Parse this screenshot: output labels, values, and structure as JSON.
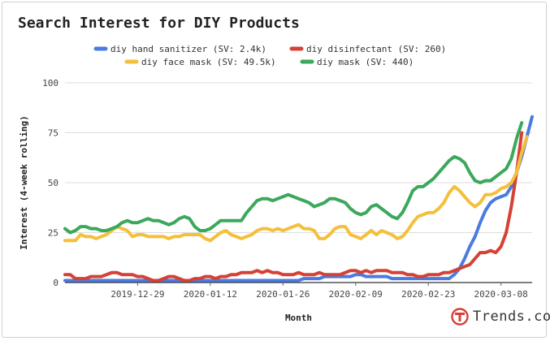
{
  "chart_data": {
    "type": "line",
    "title": "Search Interest for DIY Products",
    "xlabel": "Month",
    "ylabel": "Interest (4-week rolling)",
    "ylim": [
      0,
      100
    ],
    "yticks": [
      "0",
      "25",
      "50",
      "75",
      "100"
    ],
    "xticks": [
      {
        "index": 14,
        "label": "2019-12-29"
      },
      {
        "index": 28,
        "label": "2020-01-12"
      },
      {
        "index": 42,
        "label": "2020-01-26"
      },
      {
        "index": 56,
        "label": "2020-02-09"
      },
      {
        "index": 70,
        "label": "2020-02-23"
      },
      {
        "index": 84,
        "label": "2020-03-08"
      }
    ],
    "grid": true,
    "legend_position": "top",
    "series": [
      {
        "name": "diy hand sanitizer (SV: 2.4k)",
        "color": "#4a7be0",
        "values": [
          1,
          1,
          1,
          1,
          1,
          1,
          1,
          1,
          1,
          1,
          1,
          1,
          1,
          1,
          1,
          1,
          1,
          1,
          1,
          1,
          1,
          1,
          1,
          1,
          1,
          1,
          1,
          1,
          1,
          1,
          1,
          1,
          1,
          1,
          1,
          1,
          1,
          1,
          1,
          1,
          1,
          1,
          1,
          1,
          1,
          1,
          2,
          2,
          2,
          2,
          3,
          3,
          3,
          3,
          3,
          3,
          4,
          4,
          3,
          3,
          3,
          3,
          3,
          2,
          2,
          2,
          2,
          2,
          2,
          2,
          2,
          2,
          2,
          2,
          2,
          4,
          7,
          12,
          18,
          23,
          30,
          36,
          40,
          42,
          43,
          44,
          48,
          55,
          63,
          73,
          83
        ]
      },
      {
        "name": "diy disinfectant (SV: 260)",
        "color": "#d64135",
        "values": [
          4,
          4,
          2,
          2,
          2,
          3,
          3,
          3,
          4,
          5,
          5,
          4,
          4,
          4,
          3,
          3,
          2,
          1,
          1,
          2,
          3,
          3,
          2,
          1,
          1,
          2,
          2,
          3,
          3,
          2,
          3,
          3,
          4,
          4,
          5,
          5,
          5,
          6,
          5,
          6,
          5,
          5,
          4,
          4,
          4,
          5,
          4,
          4,
          4,
          5,
          4,
          4,
          4,
          4,
          5,
          6,
          6,
          5,
          6,
          5,
          6,
          6,
          6,
          5,
          5,
          5,
          4,
          4,
          3,
          3,
          4,
          4,
          4,
          5,
          5,
          6,
          7,
          8,
          9,
          12,
          15,
          15,
          16,
          15,
          18,
          25,
          38,
          55,
          75
        ]
      },
      {
        "name": "diy face mask (SV: 49.5k)",
        "color": "#f4c03b",
        "values": [
          21,
          21,
          21,
          24,
          23,
          23,
          22,
          23,
          24,
          26,
          28,
          27,
          26,
          23,
          24,
          24,
          23,
          23,
          23,
          23,
          22,
          23,
          23,
          24,
          24,
          24,
          24,
          22,
          21,
          23,
          25,
          26,
          24,
          23,
          22,
          23,
          24,
          26,
          27,
          27,
          26,
          27,
          26,
          27,
          28,
          29,
          27,
          27,
          26,
          22,
          22,
          24,
          27,
          28,
          28,
          24,
          23,
          22,
          24,
          26,
          24,
          26,
          25,
          24,
          22,
          23,
          26,
          30,
          33,
          34,
          35,
          35,
          37,
          40,
          45,
          48,
          46,
          43,
          40,
          38,
          40,
          44,
          44,
          45,
          47,
          48,
          50,
          55,
          65,
          73
        ]
      },
      {
        "name": "diy mask (SV: 440)",
        "color": "#3ba85c",
        "values": [
          27,
          25,
          26,
          28,
          28,
          27,
          27,
          26,
          26,
          27,
          28,
          30,
          31,
          30,
          30,
          31,
          32,
          31,
          31,
          30,
          29,
          30,
          32,
          33,
          32,
          28,
          26,
          26,
          27,
          29,
          31,
          31,
          31,
          31,
          31,
          35,
          38,
          41,
          42,
          42,
          41,
          42,
          43,
          44,
          43,
          42,
          41,
          40,
          38,
          39,
          40,
          42,
          42,
          41,
          40,
          37,
          35,
          34,
          35,
          38,
          39,
          37,
          35,
          33,
          32,
          35,
          40,
          46,
          48,
          48,
          50,
          52,
          55,
          58,
          61,
          63,
          62,
          60,
          55,
          51,
          50,
          51,
          51,
          53,
          55,
          57,
          62,
          72,
          80
        ]
      }
    ]
  },
  "brand": {
    "logo_icon": "trends-t-icon",
    "logo_color": "#d64135",
    "name": "Trends.co"
  }
}
